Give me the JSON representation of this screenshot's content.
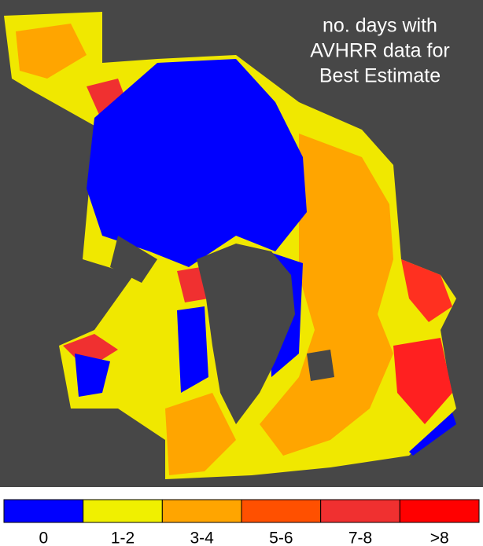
{
  "title_lines": [
    "no. days with",
    "AVHRR data for",
    "Best Estimate"
  ],
  "legend": {
    "items": [
      {
        "label": "0",
        "color": "#0000ff"
      },
      {
        "label": "1-2",
        "color": "#f0f000"
      },
      {
        "label": "3-4",
        "color": "#ffa500"
      },
      {
        "label": "5-6",
        "color": "#ff5000"
      },
      {
        "label": "7-8",
        "color": "#f03030"
      },
      {
        "label": ">8",
        "color": "#ff0000"
      }
    ]
  }
}
